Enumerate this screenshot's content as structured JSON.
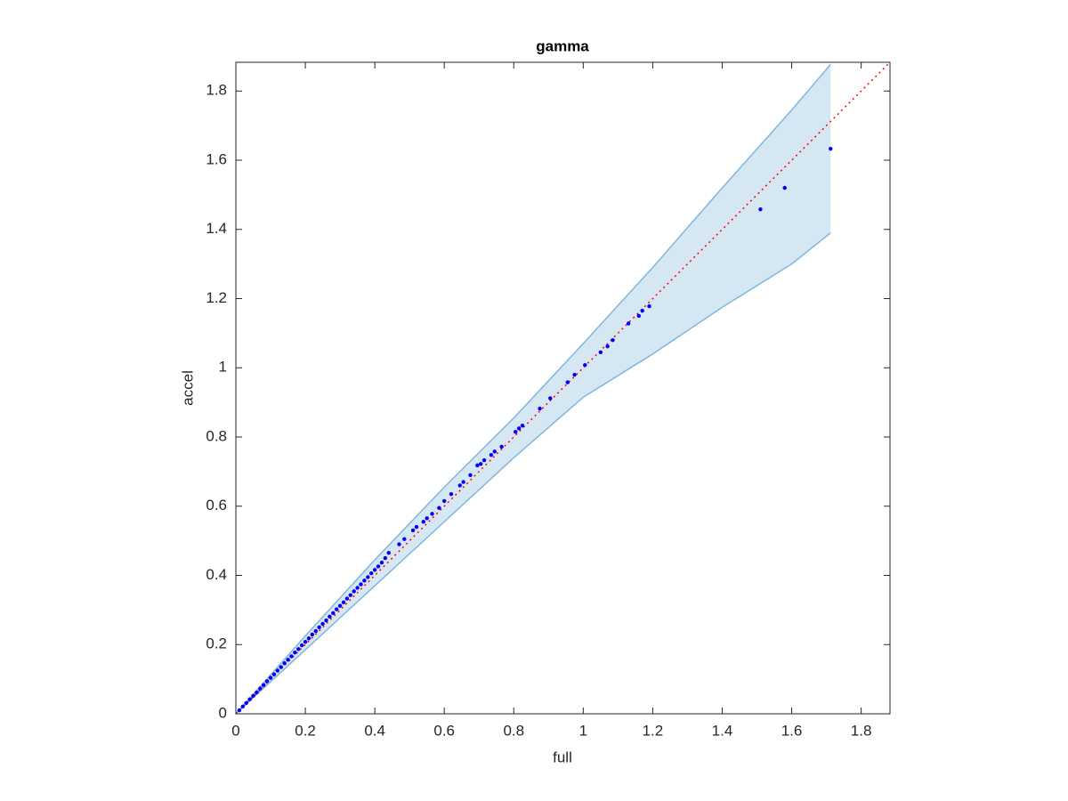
{
  "chart_data": {
    "type": "scatter",
    "title": "gamma",
    "x_label": "full",
    "y_label": "accel",
    "xlim": [
      0,
      1.883
    ],
    "ylim": [
      0,
      1.883
    ],
    "xticks": [
      0,
      0.2,
      0.4,
      0.6,
      0.8,
      1,
      1.2,
      1.4,
      1.6,
      1.8
    ],
    "yticks": [
      0,
      0.2,
      0.4,
      0.6,
      0.8,
      1,
      1.2,
      1.4,
      1.6,
      1.8
    ],
    "grid": false,
    "series": [
      {
        "type": "band",
        "color": "#7fb6dd",
        "fill": "#d6e7f4",
        "x": [
          0,
          0.2,
          0.4,
          0.6,
          0.8,
          1.0,
          1.2,
          1.4,
          1.6,
          1.712
        ],
        "upper": [
          0,
          0.225,
          0.445,
          0.655,
          0.855,
          1.07,
          1.29,
          1.52,
          1.745,
          1.877
        ],
        "lower": [
          0,
          0.185,
          0.37,
          0.555,
          0.74,
          0.915,
          1.04,
          1.175,
          1.3,
          1.39
        ]
      },
      {
        "type": "line",
        "color": "#ff0000",
        "x": [
          0,
          1.883
        ],
        "values": [
          0,
          1.883
        ]
      },
      {
        "type": "scatter",
        "color": "#0000ff",
        "x": [
          0.01,
          0.02,
          0.03,
          0.04,
          0.05,
          0.06,
          0.07,
          0.08,
          0.09,
          0.1,
          0.11,
          0.12,
          0.13,
          0.14,
          0.15,
          0.16,
          0.17,
          0.18,
          0.19,
          0.2,
          0.21,
          0.22,
          0.23,
          0.24,
          0.25,
          0.26,
          0.27,
          0.28,
          0.29,
          0.3,
          0.31,
          0.32,
          0.33,
          0.34,
          0.35,
          0.36,
          0.37,
          0.38,
          0.39,
          0.4,
          0.41,
          0.42,
          0.43,
          0.44,
          0.47,
          0.485,
          0.51,
          0.52,
          0.54,
          0.55,
          0.565,
          0.585,
          0.6,
          0.62,
          0.645,
          0.655,
          0.675,
          0.695,
          0.705,
          0.715,
          0.735,
          0.745,
          0.765,
          0.805,
          0.815,
          0.825,
          0.875,
          0.905,
          0.955,
          0.975,
          1.005,
          1.05,
          1.07,
          1.085,
          1.13,
          1.16,
          1.17,
          1.19,
          1.51,
          1.58,
          1.712
        ],
        "values": [
          0.01,
          0.021,
          0.031,
          0.042,
          0.052,
          0.062,
          0.073,
          0.083,
          0.094,
          0.104,
          0.114,
          0.125,
          0.135,
          0.146,
          0.156,
          0.166,
          0.177,
          0.187,
          0.198,
          0.208,
          0.218,
          0.229,
          0.239,
          0.25,
          0.26,
          0.27,
          0.281,
          0.291,
          0.302,
          0.312,
          0.322,
          0.333,
          0.343,
          0.354,
          0.364,
          0.374,
          0.385,
          0.395,
          0.406,
          0.416,
          0.426,
          0.437,
          0.45,
          0.465,
          0.49,
          0.505,
          0.53,
          0.54,
          0.555,
          0.565,
          0.578,
          0.595,
          0.615,
          0.635,
          0.66,
          0.67,
          0.69,
          0.718,
          0.722,
          0.733,
          0.748,
          0.758,
          0.772,
          0.815,
          0.825,
          0.833,
          0.882,
          0.912,
          0.958,
          0.98,
          1.008,
          1.045,
          1.062,
          1.08,
          1.128,
          1.15,
          1.165,
          1.178,
          1.458,
          1.52,
          1.633
        ]
      }
    ]
  }
}
